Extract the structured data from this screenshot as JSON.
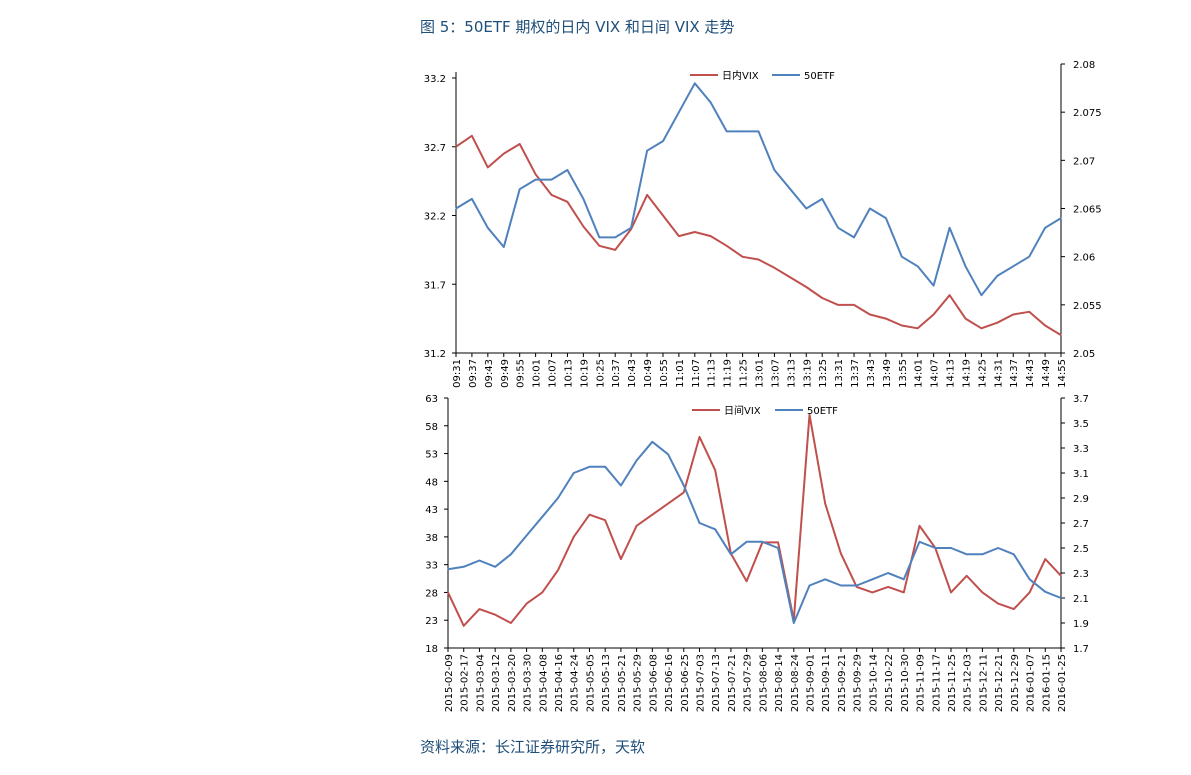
{
  "figure": {
    "title": "图 5：50ETF 期权的日内 VIX 和日间 VIX 走势",
    "source": "资料来源：长江证券研究所，天软"
  },
  "colors": {
    "vix": "#c0504d",
    "etf": "#4f81bd"
  },
  "chart_data": [
    {
      "type": "line",
      "legend_position": "top-center",
      "categories": [
        "09:31",
        "09:37",
        "09:43",
        "09:49",
        "09:55",
        "10:01",
        "10:07",
        "10:13",
        "10:19",
        "10:25",
        "10:37",
        "10:43",
        "10:49",
        "10:55",
        "11:01",
        "11:07",
        "11:13",
        "11:19",
        "11:25",
        "13:01",
        "13:07",
        "13:13",
        "13:19",
        "13:25",
        "13:31",
        "13:37",
        "13:43",
        "13:49",
        "13:55",
        "14:01",
        "14:07",
        "14:13",
        "14:19",
        "14:25",
        "14:31",
        "14:37",
        "14:43",
        "14:49",
        "14:55"
      ],
      "y_left": {
        "min": 31.2,
        "max": 33.2,
        "ticks": [
          "33.2",
          "32.7",
          "32.2",
          "31.7",
          "31.2"
        ]
      },
      "y_right": {
        "min": 2.05,
        "max": 2.08,
        "ticks": [
          "2.08",
          "2.075",
          "2.07",
          "2.065",
          "2.06",
          "2.055",
          "2.05"
        ]
      },
      "series": [
        {
          "name": "日内VIX",
          "axis": "left",
          "color": "#c0504d",
          "values": [
            32.7,
            32.78,
            32.55,
            32.65,
            32.72,
            32.5,
            32.35,
            32.3,
            32.12,
            31.98,
            31.95,
            32.1,
            32.35,
            32.2,
            32.05,
            32.08,
            32.05,
            31.98,
            31.9,
            31.88,
            31.82,
            31.75,
            31.68,
            31.6,
            31.55,
            31.55,
            31.48,
            31.45,
            31.4,
            31.38,
            31.48,
            31.62,
            31.45,
            31.38,
            31.42,
            31.48,
            31.5,
            31.4,
            31.33
          ]
        },
        {
          "name": "50ETF",
          "axis": "right",
          "color": "#4f81bd",
          "values": [
            2.065,
            2.066,
            2.063,
            2.061,
            2.067,
            2.068,
            2.068,
            2.069,
            2.066,
            2.062,
            2.062,
            2.063,
            2.071,
            2.072,
            2.075,
            2.078,
            2.076,
            2.073,
            2.073,
            2.073,
            2.069,
            2.067,
            2.065,
            2.066,
            2.063,
            2.062,
            2.065,
            2.064,
            2.06,
            2.059,
            2.057,
            2.063,
            2.059,
            2.056,
            2.058,
            2.059,
            2.06,
            2.063,
            2.064
          ]
        }
      ]
    },
    {
      "type": "line",
      "legend_position": "top-center",
      "categories": [
        "2015-02-09",
        "2015-02-17",
        "2015-03-04",
        "2015-03-12",
        "2015-03-20",
        "2015-03-30",
        "2015-04-08",
        "2015-04-16",
        "2015-04-24",
        "2015-05-05",
        "2015-05-13",
        "2015-05-21",
        "2015-05-29",
        "2015-06-08",
        "2015-06-16",
        "2015-06-25",
        "2015-07-03",
        "2015-07-13",
        "2015-07-21",
        "2015-07-29",
        "2015-08-06",
        "2015-08-14",
        "2015-08-24",
        "2015-09-01",
        "2015-09-11",
        "2015-09-21",
        "2015-09-29",
        "2015-10-14",
        "2015-10-22",
        "2015-10-30",
        "2015-11-09",
        "2015-11-17",
        "2015-11-25",
        "2015-12-03",
        "2015-12-11",
        "2015-12-21",
        "2015-12-29",
        "2016-01-07",
        "2016-01-15",
        "2016-01-25"
      ],
      "y_left": {
        "min": 18,
        "max": 63,
        "ticks": [
          "63",
          "58",
          "53",
          "48",
          "43",
          "38",
          "33",
          "28",
          "23",
          "18"
        ]
      },
      "y_right": {
        "min": 1.7,
        "max": 3.7,
        "ticks": [
          "3.7",
          "3.5",
          "3.3",
          "3.1",
          "2.9",
          "2.7",
          "2.5",
          "2.3",
          "2.1",
          "1.9",
          "1.7"
        ]
      },
      "series": [
        {
          "name": "日间VIX",
          "axis": "left",
          "color": "#c0504d",
          "values": [
            28,
            22,
            25,
            24,
            22.5,
            26,
            28,
            32,
            38,
            42,
            41,
            34,
            40,
            42,
            44,
            46,
            56,
            50,
            35,
            30,
            37,
            37,
            23,
            60,
            44,
            35,
            29,
            28,
            29,
            28,
            40,
            36,
            28,
            31,
            28,
            26,
            25,
            28,
            34,
            31
          ]
        },
        {
          "name": "50ETF",
          "axis": "right",
          "color": "#4f81bd",
          "values": [
            2.33,
            2.35,
            2.4,
            2.35,
            2.45,
            2.6,
            2.75,
            2.9,
            3.1,
            3.15,
            3.15,
            3.0,
            3.2,
            3.35,
            3.25,
            3.0,
            2.7,
            2.65,
            2.45,
            2.55,
            2.55,
            2.5,
            1.9,
            2.2,
            2.25,
            2.2,
            2.2,
            2.25,
            2.3,
            2.25,
            2.55,
            2.5,
            2.5,
            2.45,
            2.45,
            2.5,
            2.45,
            2.25,
            2.15,
            2.1
          ]
        }
      ]
    }
  ]
}
